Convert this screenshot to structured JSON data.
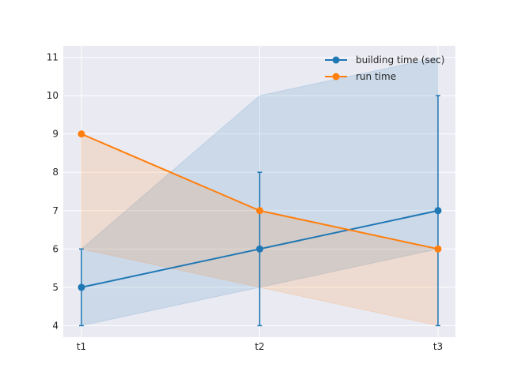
{
  "chart_data": {
    "type": "line",
    "title": "",
    "xlabel": "",
    "ylabel": "",
    "categories": [
      "t1",
      "t2",
      "t3"
    ],
    "ylim": [
      3.7,
      11.3
    ],
    "yticks": [
      4,
      5,
      6,
      7,
      8,
      9,
      10,
      11
    ],
    "grid": true,
    "legend_position": "top-right",
    "series": [
      {
        "name": "building time (sec)",
        "color": "#1f77b4",
        "values": [
          5,
          6,
          7
        ],
        "band_lower": [
          4,
          5,
          6
        ],
        "band_upper": [
          6,
          10,
          11
        ],
        "error_lower": [
          4,
          4,
          4
        ],
        "error_upper": [
          6,
          8,
          10
        ]
      },
      {
        "name": "run time",
        "color": "#ff7f0e",
        "values": [
          9,
          7,
          6
        ],
        "band_lower": [
          6,
          5,
          4
        ],
        "band_upper": [
          9,
          7,
          6
        ]
      }
    ]
  }
}
